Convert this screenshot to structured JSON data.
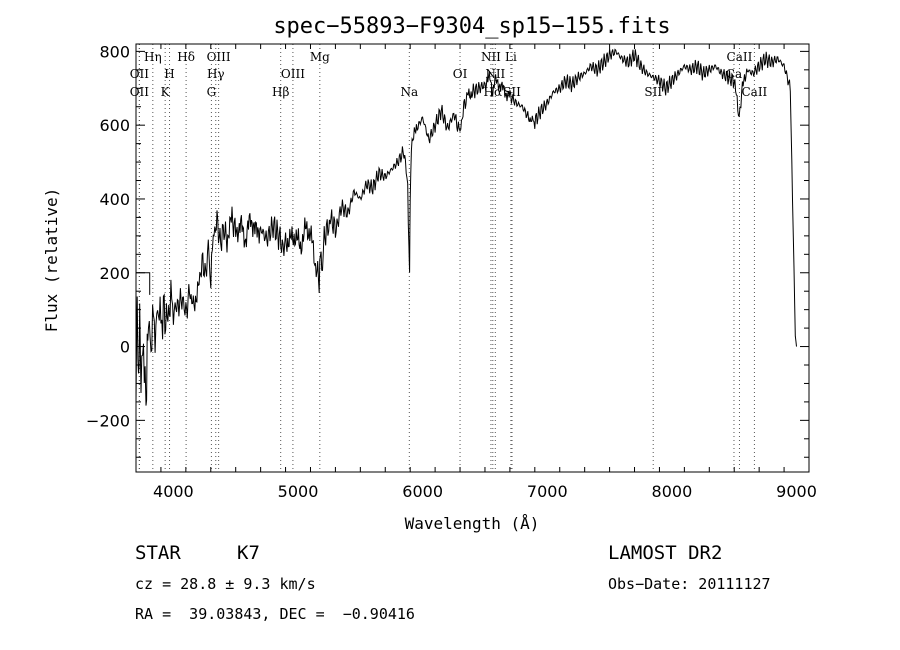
{
  "chart_data": {
    "type": "line",
    "title": "spec−55893−F9304_sp15−155.fits",
    "xlabel": "Wavelength (Å)",
    "ylabel": "Flux (relative)",
    "xlim": [
      3700,
      9100
    ],
    "ylim": [
      -340,
      820
    ],
    "xticks": [
      4000,
      5000,
      6000,
      7000,
      8000,
      9000
    ],
    "yticks": [
      -200,
      0,
      200,
      400,
      600,
      800
    ],
    "series": [
      {
        "name": "flux",
        "x": [
          3700,
          3710,
          3720,
          3730,
          3740,
          3760,
          3780,
          3790,
          3800,
          3820,
          3840,
          3860,
          3880,
          3900,
          3920,
          3950,
          3980,
          4000,
          4020,
          4050,
          4080,
          4100,
          4130,
          4160,
          4200,
          4230,
          4260,
          4280,
          4300,
          4320,
          4350,
          4380,
          4400,
          4430,
          4470,
          4500,
          4540,
          4580,
          4620,
          4660,
          4700,
          4750,
          4800,
          4850,
          4880,
          4900,
          4940,
          4980,
          5020,
          5060,
          5100,
          5140,
          5170,
          5180,
          5190,
          5210,
          5240,
          5270,
          5300,
          5350,
          5400,
          5450,
          5500,
          5550,
          5600,
          5650,
          5700,
          5750,
          5800,
          5850,
          5880,
          5890,
          5895,
          5900,
          5910,
          5950,
          6000,
          6050,
          6100,
          6150,
          6200,
          6250,
          6280,
          6300,
          6330,
          6360,
          6400,
          6450,
          6500,
          6540,
          6563,
          6580,
          6620,
          6660,
          6700,
          6750,
          6800,
          6850,
          6880,
          6900,
          6950,
          7000,
          7050,
          7100,
          7150,
          7200,
          7250,
          7300,
          7350,
          7400,
          7450,
          7500,
          7550,
          7600,
          7650,
          7700,
          7750,
          7800,
          7850,
          7900,
          7950,
          8000,
          8050,
          8100,
          8150,
          8200,
          8250,
          8300,
          8350,
          8400,
          8450,
          8500,
          8540,
          8560,
          8600,
          8650,
          8700,
          8750,
          8800,
          8850,
          8900,
          8950,
          8980,
          8990,
          9000
        ],
        "values": [
          -150,
          130,
          -90,
          60,
          -120,
          20,
          -170,
          -20,
          40,
          10,
          80,
          30,
          120,
          60,
          95,
          70,
          130,
          90,
          100,
          120,
          130,
          90,
          150,
          110,
          160,
          230,
          200,
          270,
          180,
          300,
          340,
          280,
          320,
          290,
          350,
          310,
          330,
          290,
          350,
          310,
          320,
          290,
          330,
          295,
          270,
          285,
          290,
          300,
          270,
          320,
          310,
          220,
          180,
          260,
          200,
          300,
          320,
          350,
          310,
          380,
          360,
          420,
          400,
          440,
          430,
          470,
          460,
          480,
          500,
          530,
          440,
          260,
          200,
          390,
          550,
          590,
          620,
          560,
          600,
          640,
          590,
          630,
          600,
          580,
          650,
          680,
          690,
          700,
          710,
          730,
          690,
          720,
          710,
          690,
          680,
          660,
          650,
          620,
          610,
          610,
          640,
          660,
          690,
          700,
          720,
          710,
          730,
          740,
          760,
          750,
          770,
          790,
          800,
          780,
          770,
          790,
          760,
          740,
          730,
          720,
          700,
          720,
          740,
          760,
          750,
          760,
          740,
          750,
          760,
          740,
          730,
          720,
          620,
          690,
          750,
          740,
          760,
          780,
          770,
          780,
          760,
          700,
          200,
          20,
          0
        ]
      }
    ],
    "spectral_lines": [
      {
        "label": "Hη",
        "wavelength": 3835,
        "row": 0
      },
      {
        "label": "Hδ",
        "wavelength": 4102,
        "row": 0
      },
      {
        "label": "OIII",
        "wavelength": 4363,
        "row": 0
      },
      {
        "label": "Mg",
        "wavelength": 5175,
        "row": 0
      },
      {
        "label": "NII",
        "wavelength": 6548,
        "row": 0
      },
      {
        "label": "Li",
        "wavelength": 6708,
        "row": 0
      },
      {
        "label": "CaII",
        "wavelength": 8542,
        "row": 0
      },
      {
        "label": "OII",
        "wavelength": 3727,
        "row": 1
      },
      {
        "label": "H",
        "wavelength": 3969,
        "row": 1
      },
      {
        "label": "Hγ",
        "wavelength": 4340,
        "row": 1
      },
      {
        "label": "OIII",
        "wavelength": 4959,
        "row": 1
      },
      {
        "label": "OI",
        "wavelength": 6300,
        "row": 1
      },
      {
        "label": "NII",
        "wavelength": 6583,
        "row": 1
      },
      {
        "label": "Ca",
        "wavelength": 8498,
        "row": 1
      },
      {
        "label": "OII",
        "wavelength": 3727,
        "row": 2
      },
      {
        "label": "K",
        "wavelength": 3934,
        "row": 2
      },
      {
        "label": "G",
        "wavelength": 4305,
        "row": 2
      },
      {
        "label": "Hβ",
        "wavelength": 4861,
        "row": 2
      },
      {
        "label": "Na",
        "wavelength": 5893,
        "row": 2
      },
      {
        "label": "Hα",
        "wavelength": 6563,
        "row": 2
      },
      {
        "label": "SII",
        "wavelength": 6717,
        "row": 2
      },
      {
        "label": "SII",
        "wavelength": 7850,
        "row": 2
      },
      {
        "label": "CaII",
        "wavelength": 8662,
        "row": 2
      }
    ]
  },
  "info": {
    "object_class": "STAR",
    "subclass": "K7",
    "survey": "LAMOST DR2",
    "redshift": "cz = 28.8 ± 9.3 km/s",
    "obs_date": "Obs−Date: 20111127",
    "coords": "RA =  39.03843, DEC =  −0.90416"
  }
}
